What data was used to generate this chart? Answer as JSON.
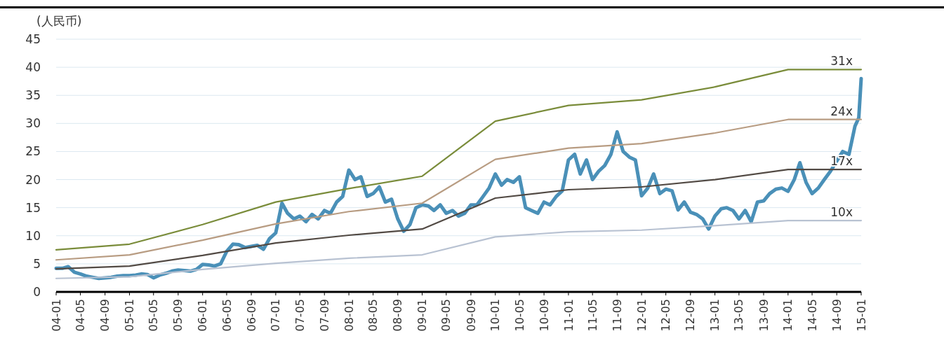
{
  "chart_data": {
    "type": "line",
    "ylabel": "(人民币)",
    "xlim": [
      "2004-01",
      "2015-01"
    ],
    "xticks": [
      {
        "value": "2004-01",
        "label": "04-01"
      },
      {
        "value": "2004-05",
        "label": "04-05"
      },
      {
        "value": "2004-09",
        "label": "04-09"
      },
      {
        "value": "2005-01",
        "label": "05-01"
      },
      {
        "value": "2005-05",
        "label": "05-05"
      },
      {
        "value": "2005-09",
        "label": "05-09"
      },
      {
        "value": "2006-01",
        "label": "06-01"
      },
      {
        "value": "2006-05",
        "label": "06-05"
      },
      {
        "value": "2006-09",
        "label": "06-09"
      },
      {
        "value": "2007-01",
        "label": "07-01"
      },
      {
        "value": "2007-05",
        "label": "07-05"
      },
      {
        "value": "2007-09",
        "label": "07-09"
      },
      {
        "value": "2008-01",
        "label": "08-01"
      },
      {
        "value": "2008-05",
        "label": "08-05"
      },
      {
        "value": "2008-09",
        "label": "08-09"
      },
      {
        "value": "2009-01",
        "label": "09-01"
      },
      {
        "value": "2009-05",
        "label": "09-05"
      },
      {
        "value": "2009-09",
        "label": "09-09"
      },
      {
        "value": "2010-01",
        "label": "10-01"
      },
      {
        "value": "2010-05",
        "label": "10-05"
      },
      {
        "value": "2010-09",
        "label": "10-09"
      },
      {
        "value": "2011-01",
        "label": "11-01"
      },
      {
        "value": "2011-05",
        "label": "11-05"
      },
      {
        "value": "2011-09",
        "label": "11-09"
      },
      {
        "value": "2012-01",
        "label": "12-01"
      },
      {
        "value": "2012-05",
        "label": "12-05"
      },
      {
        "value": "2012-09",
        "label": "12-09"
      },
      {
        "value": "2013-01",
        "label": "13-01"
      },
      {
        "value": "2013-05",
        "label": "13-05"
      },
      {
        "value": "2013-09",
        "label": "13-09"
      },
      {
        "value": "2014-01",
        "label": "14-01"
      },
      {
        "value": "2014-05",
        "label": "14-05"
      },
      {
        "value": "2014-09",
        "label": "14-09"
      },
      {
        "value": "2015-01",
        "label": "15-01"
      }
    ],
    "ylim": [
      0,
      45
    ],
    "yticks": [
      0,
      5,
      10,
      15,
      20,
      25,
      30,
      35,
      40,
      45
    ],
    "grid": "y",
    "series": [
      {
        "name": "31x",
        "color": "#7a8c3a",
        "x": [
          "2004-01",
          "2005-01",
          "2006-01",
          "2007-01",
          "2008-01",
          "2009-01",
          "2010-01",
          "2011-01",
          "2012-01",
          "2013-01",
          "2014-01",
          "2015-01"
        ],
        "values": [
          7.5,
          8.5,
          12.0,
          16.0,
          18.4,
          20.6,
          30.4,
          33.2,
          34.2,
          36.5,
          39.6,
          39.6
        ]
      },
      {
        "name": "24x",
        "color": "#b89c82",
        "x": [
          "2004-01",
          "2005-01",
          "2006-01",
          "2007-01",
          "2008-01",
          "2009-01",
          "2010-01",
          "2011-01",
          "2012-01",
          "2013-01",
          "2014-01",
          "2015-01"
        ],
        "values": [
          5.7,
          6.6,
          9.2,
          12.1,
          14.3,
          15.8,
          23.6,
          25.6,
          26.4,
          28.3,
          30.7,
          30.7
        ]
      },
      {
        "name": "17x",
        "color": "#524a44",
        "x": [
          "2004-01",
          "2005-01",
          "2006-01",
          "2007-01",
          "2008-01",
          "2009-01",
          "2010-01",
          "2011-01",
          "2012-01",
          "2013-01",
          "2014-01",
          "2015-01"
        ],
        "values": [
          4.1,
          4.6,
          6.5,
          8.7,
          10.1,
          11.2,
          16.7,
          18.2,
          18.7,
          20.0,
          21.8,
          21.8
        ]
      },
      {
        "name": "10x",
        "color": "#b8c2d2",
        "x": [
          "2004-01",
          "2005-01",
          "2006-01",
          "2007-01",
          "2008-01",
          "2009-01",
          "2010-01",
          "2011-01",
          "2012-01",
          "2013-01",
          "2014-01",
          "2015-01"
        ],
        "values": [
          2.4,
          2.7,
          4.0,
          5.1,
          6.0,
          6.6,
          9.8,
          10.7,
          11.0,
          11.8,
          12.7,
          12.7
        ]
      },
      {
        "color": "#4a90b8",
        "x": [
          "2004-01",
          "2004-02",
          "2004-03",
          "2004-04",
          "2004-05",
          "2004-06",
          "2004-07",
          "2004-08",
          "2004-09",
          "2004-10",
          "2004-11",
          "2004-12",
          "2005-01",
          "2005-02",
          "2005-03",
          "2005-04",
          "2005-05",
          "2005-06",
          "2005-07",
          "2005-08",
          "2005-09",
          "2005-10",
          "2005-11",
          "2005-12",
          "2006-01",
          "2006-02",
          "2006-03",
          "2006-04",
          "2006-05",
          "2006-06",
          "2006-07",
          "2006-08",
          "2006-09",
          "2006-10",
          "2006-11",
          "2006-12",
          "2007-01",
          "2007-02",
          "2007-03",
          "2007-04",
          "2007-05",
          "2007-06",
          "2007-07",
          "2007-08",
          "2007-09",
          "2007-10",
          "2007-11",
          "2007-12",
          "2008-01",
          "2008-02",
          "2008-03",
          "2008-04",
          "2008-05",
          "2008-06",
          "2008-07",
          "2008-08",
          "2008-09",
          "2008-10",
          "2008-11",
          "2008-12",
          "2009-01",
          "2009-02",
          "2009-03",
          "2009-04",
          "2009-05",
          "2009-06",
          "2009-07",
          "2009-08",
          "2009-09",
          "2009-10",
          "2009-11",
          "2009-12",
          "2010-01",
          "2010-02",
          "2010-03",
          "2010-04",
          "2010-05",
          "2010-06",
          "2010-07",
          "2010-08",
          "2010-09",
          "2010-10",
          "2010-11",
          "2010-12",
          "2011-01",
          "2011-02",
          "2011-03",
          "2011-04",
          "2011-05",
          "2011-06",
          "2011-07",
          "2011-08",
          "2011-09",
          "2011-10",
          "2011-11",
          "2011-12",
          "2012-01",
          "2012-02",
          "2012-03",
          "2012-04",
          "2012-05",
          "2012-06",
          "2012-07",
          "2012-08",
          "2012-09",
          "2012-10",
          "2012-11",
          "2012-12",
          "2013-01",
          "2013-02",
          "2013-03",
          "2013-04",
          "2013-05",
          "2013-06",
          "2013-07",
          "2013-08",
          "2013-09",
          "2013-10",
          "2013-11",
          "2013-12",
          "2014-01",
          "2014-02",
          "2014-03",
          "2014-04",
          "2014-05",
          "2014-06",
          "2014-07",
          "2014-08",
          "2014-09",
          "2014-10",
          "2014-11",
          "2014-12",
          "2014-12-20",
          "2015-01"
        ],
        "values": [
          4.2,
          4.2,
          4.5,
          3.5,
          3.2,
          2.8,
          2.6,
          2.4,
          2.5,
          2.6,
          2.8,
          2.9,
          2.9,
          3.0,
          3.2,
          3.1,
          2.5,
          3.0,
          3.3,
          3.7,
          3.9,
          3.8,
          3.7,
          4.0,
          4.9,
          4.8,
          4.6,
          5.0,
          7.2,
          8.5,
          8.4,
          7.9,
          8.1,
          8.3,
          7.6,
          9.5,
          10.5,
          15.8,
          14.0,
          13.0,
          13.5,
          12.5,
          13.8,
          13.0,
          14.5,
          14.0,
          16.0,
          17.0,
          21.7,
          20.0,
          20.5,
          17.0,
          17.5,
          18.7,
          16.0,
          16.5,
          13.0,
          10.8,
          12.0,
          15.0,
          15.5,
          15.3,
          14.5,
          15.5,
          14.0,
          14.5,
          13.5,
          14.0,
          15.5,
          15.5,
          17.0,
          18.5,
          21.0,
          19.0,
          20.0,
          19.5,
          20.5,
          15.0,
          14.5,
          14.0,
          16.0,
          15.5,
          17.0,
          18.0,
          23.5,
          24.5,
          21.0,
          23.5,
          20.0,
          21.5,
          22.5,
          24.5,
          28.5,
          25.0,
          24.0,
          23.5,
          17.1,
          18.5,
          21.0,
          17.5,
          18.3,
          18.0,
          14.6,
          16.0,
          14.2,
          13.8,
          13.0,
          11.2,
          13.5,
          14.8,
          15.0,
          14.5,
          13.0,
          14.5,
          12.5,
          16.0,
          16.2,
          17.5,
          18.3,
          18.5,
          17.9,
          20.0,
          23.0,
          19.5,
          17.5,
          18.5,
          20.0,
          21.5,
          23.3,
          25.0,
          24.5,
          29.5,
          31.0,
          38.0
        ]
      }
    ]
  }
}
